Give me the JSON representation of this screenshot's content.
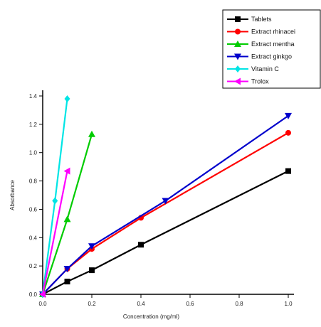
{
  "chart_data": {
    "type": "line",
    "xlabel": "Concentration (mg/ml)",
    "ylabel": "Absorbance",
    "xlim": [
      0,
      1.0
    ],
    "ylim": [
      0,
      1.4
    ],
    "xticks": [
      0.0,
      0.2,
      0.4,
      0.6,
      0.8,
      1.0
    ],
    "xtick_labels": [
      "0.0",
      "0.2",
      "0.4",
      "0.6",
      "0.8",
      "1.0"
    ],
    "yticks": [
      0.0,
      0.2,
      0.4,
      0.6,
      0.8,
      1.0,
      1.2,
      1.4
    ],
    "ytick_labels": [
      "0.0",
      "0.2",
      "0.4",
      "0.6",
      "0.8",
      "1.0",
      "1.2",
      "1.4"
    ],
    "legend_position": "top-right",
    "series": [
      {
        "name": "Tablets",
        "color": "#000000",
        "marker": "square",
        "x": [
          0.0,
          0.1,
          0.2,
          0.4,
          1.0
        ],
        "y": [
          0.0,
          0.09,
          0.17,
          0.35,
          0.87
        ]
      },
      {
        "name": "Extract rhinacei",
        "color": "#ff0000",
        "marker": "circle",
        "x": [
          0.0,
          0.1,
          0.2,
          0.4,
          1.0
        ],
        "y": [
          0.0,
          0.18,
          0.32,
          0.54,
          1.14
        ]
      },
      {
        "name": "Extract mentha",
        "color": "#00cc00",
        "marker": "triangle-up",
        "x": [
          0.0,
          0.1,
          0.2
        ],
        "y": [
          0.0,
          0.53,
          1.13
        ]
      },
      {
        "name": "Extract ginkgo",
        "color": "#0000cc",
        "marker": "triangle-down",
        "x": [
          0.0,
          0.1,
          0.2,
          0.5,
          1.0
        ],
        "y": [
          0.0,
          0.18,
          0.34,
          0.66,
          1.26
        ]
      },
      {
        "name": "Vitamin C",
        "color": "#00e5e5",
        "marker": "diamond",
        "x": [
          0.0,
          0.05,
          0.1
        ],
        "y": [
          0.0,
          0.66,
          1.38
        ]
      },
      {
        "name": "Trolox",
        "color": "#ff00ff",
        "marker": "triangle-left",
        "x": [
          0.0,
          0.1
        ],
        "y": [
          0.0,
          0.87
        ]
      }
    ]
  }
}
